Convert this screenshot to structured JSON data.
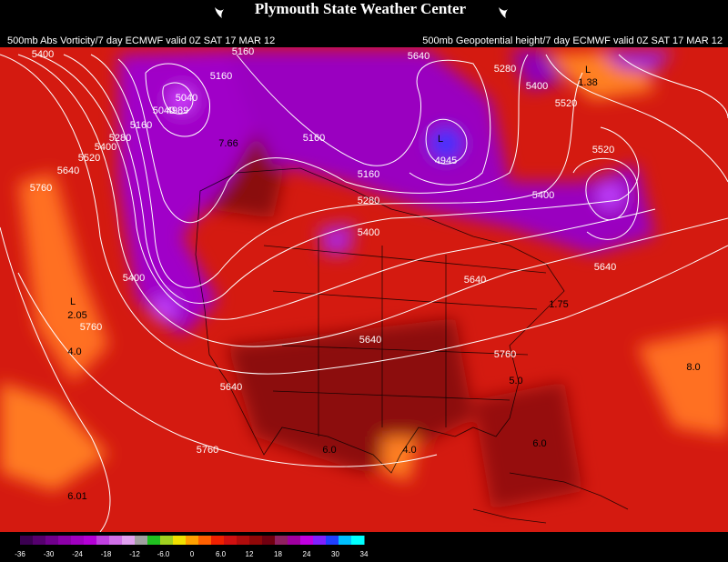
{
  "header": {
    "title": "Plymouth State Weather Center"
  },
  "captions": {
    "left": "500mb Abs Vorticity/7 day ECMWF valid 0Z SAT 17 MAR 12",
    "right": "500mb Geopotential height/7 day ECMWF valid 0Z SAT 17 MAR 12"
  },
  "map": {
    "height_labels": [
      "5400",
      "5160",
      "5040",
      "5040",
      "4989",
      "5160",
      "5160",
      "5280",
      "5400",
      "5520",
      "5640",
      "5760",
      "5160",
      "5160",
      "5280",
      "5400",
      "5640",
      "4945",
      "5280",
      "5400",
      "5520",
      "5520",
      "5400",
      "5640",
      "5640",
      "5640",
      "5760",
      "5640",
      "5760",
      "5400",
      "5760"
    ],
    "vorticity_labels": [
      "7.66",
      "2.05",
      "4.0",
      "1.75",
      "6.0",
      "4.0",
      "6.0",
      "5.0",
      "8.0",
      "6.01",
      "1.38",
      "L",
      "L",
      "L"
    ]
  },
  "colorbar": {
    "colors": [
      "#3a0050",
      "#55006e",
      "#70008c",
      "#8c00a8",
      "#a000c0",
      "#b400d6",
      "#c040e0",
      "#d070e8",
      "#e0a0f0",
      "#a0a0a0",
      "#20c020",
      "#a0d020",
      "#f0e000",
      "#ffa000",
      "#ff6000",
      "#f02000",
      "#d01010",
      "#b00c0c",
      "#900808",
      "#700010",
      "#902060",
      "#a000a0",
      "#c000e0",
      "#8020ff",
      "#2040ff",
      "#00c0ff",
      "#00ffff"
    ],
    "labels": [
      "-36",
      "-30",
      "-24",
      "-18",
      "-12",
      "-6.0",
      "0",
      "6.0",
      "12",
      "18",
      "24",
      "30",
      "34"
    ]
  }
}
